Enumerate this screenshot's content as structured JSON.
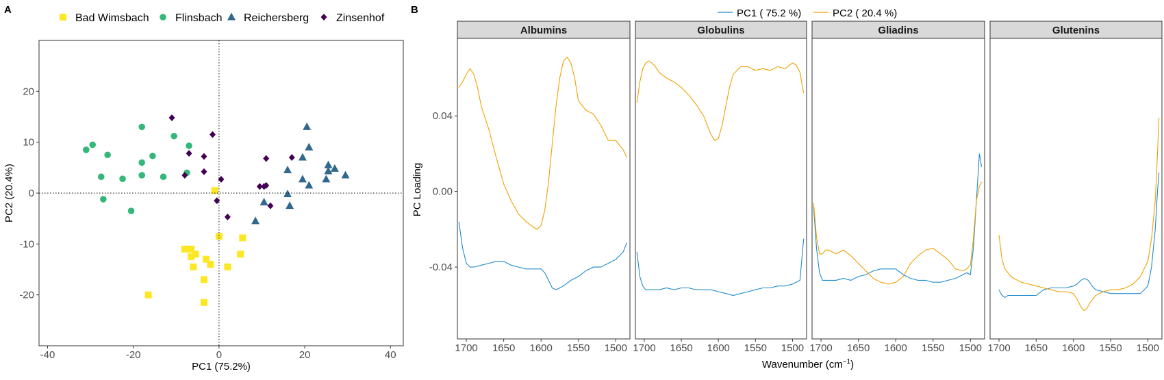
{
  "colors": {
    "bad_wimsbach": "#FDE725",
    "flinsbach": "#35B779",
    "reichersberg": "#31688E",
    "zinsenhof": "#440154",
    "pc1": "#1F8ACB",
    "pc2": "#F0A000",
    "strip_bg": "#D9D9D9"
  },
  "panel_a": {
    "letter": "A",
    "legend": [
      {
        "label": "Bad Wimsbach",
        "shape": "square",
        "color": "#FDE725"
      },
      {
        "label": "Flinsbach",
        "shape": "circle",
        "color": "#35B779"
      },
      {
        "label": "Reichersberg",
        "shape": "triangle",
        "color": "#31688E"
      },
      {
        "label": "Zinsenhof",
        "shape": "diamond",
        "color": "#440154"
      }
    ]
  },
  "panel_b": {
    "letter": "B",
    "legend": [
      {
        "label": "PC1 ( 75.2 %)",
        "color": "#1F8ACB"
      },
      {
        "label": "PC2 ( 20.4 %)",
        "color": "#F0A000"
      }
    ]
  },
  "chart_data": [
    {
      "type": "scatter",
      "xlabel": "PC1 (75.2%)",
      "ylabel": "PC2 (20.4%)",
      "xlim": [
        -42,
        43
      ],
      "ylim": [
        -30,
        30
      ],
      "xticks": [
        -40,
        -20,
        0,
        20,
        40
      ],
      "yticks": [
        -20,
        -10,
        0,
        10,
        20
      ],
      "reference_lines": {
        "x": 0,
        "y": 0,
        "style": "dotted"
      },
      "grid": false,
      "legend_position": "top",
      "series": [
        {
          "name": "Bad Wimsbach",
          "marker": "square",
          "points": [
            [
              -16.5,
              -20
            ],
            [
              -8,
              -11
            ],
            [
              -6.5,
              -11
            ],
            [
              -6.5,
              -12.5
            ],
            [
              -5.5,
              -12
            ],
            [
              -6,
              -14.5
            ],
            [
              -3,
              -13
            ],
            [
              -2,
              -14
            ],
            [
              -3.5,
              -17
            ],
            [
              -3.5,
              -21.5
            ],
            [
              -1,
              0.5
            ],
            [
              0,
              -8.5
            ],
            [
              2,
              -14.5
            ],
            [
              5,
              -12
            ],
            [
              5.5,
              -8.8
            ]
          ]
        },
        {
          "name": "Flinsbach",
          "marker": "circle",
          "points": [
            [
              -31,
              8.5
            ],
            [
              -29.5,
              9.5
            ],
            [
              -27.5,
              3.2
            ],
            [
              -26,
              7.5
            ],
            [
              -27,
              -1.2
            ],
            [
              -22.5,
              2.8
            ],
            [
              -20.5,
              -3.5
            ],
            [
              -18,
              6
            ],
            [
              -18,
              13
            ],
            [
              -18,
              3.5
            ],
            [
              -15.5,
              7.3
            ],
            [
              -13,
              3.2
            ],
            [
              -10.5,
              11.2
            ],
            [
              -7,
              9.3
            ],
            [
              -7.5,
              4
            ]
          ]
        },
        {
          "name": "Reichersberg",
          "marker": "triangle",
          "points": [
            [
              8.5,
              -5.5
            ],
            [
              10.5,
              -1.8
            ],
            [
              16,
              -0.2
            ],
            [
              16.5,
              -2.5
            ],
            [
              16,
              4.5
            ],
            [
              19.5,
              7
            ],
            [
              19.5,
              2.7
            ],
            [
              20.5,
              13
            ],
            [
              21,
              9
            ],
            [
              21,
              1.5
            ],
            [
              25,
              2.7
            ],
            [
              25.5,
              5.5
            ],
            [
              25.5,
              4.3
            ],
            [
              27,
              4.8
            ],
            [
              29.5,
              3.5
            ]
          ]
        },
        {
          "name": "Zinsenhof",
          "marker": "diamond",
          "points": [
            [
              -11,
              14.8
            ],
            [
              -8,
              3.5
            ],
            [
              -7,
              7.8
            ],
            [
              -3.5,
              7.2
            ],
            [
              -3.5,
              4.2
            ],
            [
              -1.5,
              11.5
            ],
            [
              -0.5,
              -1.5
            ],
            [
              0.5,
              2.7
            ],
            [
              2,
              -4.7
            ],
            [
              9.5,
              1.3
            ],
            [
              10.5,
              1.3
            ],
            [
              11,
              1.5
            ],
            [
              11,
              6.8
            ],
            [
              12,
              -2.5
            ],
            [
              17,
              7
            ]
          ]
        }
      ]
    },
    {
      "type": "line",
      "title": "",
      "xlabel": "Wavenumber (cm⁻¹)",
      "ylabel": "PC Loading",
      "x_direction": "reversed",
      "xlim": [
        1712,
        1481
      ],
      "ylim": [
        -0.078,
        0.081
      ],
      "xticks": [
        1700,
        1650,
        1600,
        1550,
        1500
      ],
      "yticks": [
        -0.04,
        0.0,
        0.04
      ],
      "ytick_labels": [
        "-0.04",
        "0.00",
        "0.04"
      ],
      "legend_position": "top",
      "facets": [
        {
          "name": "Albumins",
          "series": [
            {
              "name": "PC1 ( 75.2 %)",
              "x": [
                1710,
                1705,
                1700,
                1695,
                1690,
                1680,
                1670,
                1660,
                1650,
                1640,
                1630,
                1620,
                1610,
                1600,
                1595,
                1590,
                1585,
                1580,
                1570,
                1560,
                1550,
                1540,
                1530,
                1520,
                1510,
                1500,
                1490,
                1485
              ],
              "y": [
                -0.016,
                -0.03,
                -0.038,
                -0.04,
                -0.04,
                -0.039,
                -0.038,
                -0.037,
                -0.037,
                -0.039,
                -0.04,
                -0.041,
                -0.041,
                -0.041,
                -0.043,
                -0.047,
                -0.051,
                -0.052,
                -0.05,
                -0.047,
                -0.045,
                -0.042,
                -0.04,
                -0.04,
                -0.038,
                -0.036,
                -0.032,
                -0.027
              ]
            },
            {
              "name": "PC2 ( 20.4 %)",
              "x": [
                1710,
                1705,
                1700,
                1695,
                1690,
                1685,
                1680,
                1670,
                1660,
                1650,
                1640,
                1630,
                1620,
                1610,
                1605,
                1600,
                1595,
                1590,
                1585,
                1580,
                1575,
                1570,
                1565,
                1560,
                1555,
                1550,
                1540,
                1530,
                1520,
                1510,
                1500,
                1490,
                1485
              ],
              "y": [
                0.055,
                0.058,
                0.062,
                0.065,
                0.062,
                0.055,
                0.045,
                0.033,
                0.018,
                0.004,
                -0.005,
                -0.012,
                -0.016,
                -0.019,
                -0.02,
                -0.018,
                -0.01,
                0.005,
                0.025,
                0.045,
                0.06,
                0.069,
                0.071,
                0.068,
                0.06,
                0.048,
                0.043,
                0.041,
                0.035,
                0.027,
                0.027,
                0.022,
                0.018
              ]
            }
          ]
        },
        {
          "name": "Globulins",
          "series": [
            {
              "name": "PC1 ( 75.2 %)",
              "x": [
                1710,
                1706,
                1702,
                1698,
                1690,
                1680,
                1670,
                1660,
                1650,
                1640,
                1630,
                1620,
                1610,
                1600,
                1590,
                1580,
                1570,
                1560,
                1550,
                1540,
                1530,
                1520,
                1510,
                1500,
                1490,
                1485
              ],
              "y": [
                -0.032,
                -0.045,
                -0.05,
                -0.052,
                -0.052,
                -0.052,
                -0.051,
                -0.052,
                -0.051,
                -0.051,
                -0.052,
                -0.052,
                -0.052,
                -0.053,
                -0.054,
                -0.055,
                -0.054,
                -0.053,
                -0.052,
                -0.051,
                -0.051,
                -0.05,
                -0.05,
                -0.049,
                -0.047,
                -0.025
              ]
            },
            {
              "name": "PC2 ( 20.4 %)",
              "x": [
                1710,
                1706,
                1702,
                1698,
                1694,
                1690,
                1685,
                1680,
                1670,
                1660,
                1650,
                1640,
                1630,
                1620,
                1615,
                1610,
                1605,
                1600,
                1595,
                1590,
                1585,
                1580,
                1570,
                1560,
                1550,
                1540,
                1530,
                1520,
                1510,
                1500,
                1495,
                1490,
                1485
              ],
              "y": [
                0.047,
                0.058,
                0.065,
                0.068,
                0.069,
                0.068,
                0.066,
                0.063,
                0.06,
                0.058,
                0.055,
                0.051,
                0.046,
                0.04,
                0.035,
                0.03,
                0.027,
                0.028,
                0.035,
                0.045,
                0.055,
                0.062,
                0.066,
                0.066,
                0.064,
                0.065,
                0.064,
                0.066,
                0.065,
                0.068,
                0.067,
                0.063,
                0.052
              ]
            }
          ]
        },
        {
          "name": "Gliadins",
          "series": [
            {
              "name": "PC1 ( 75.2 %)",
              "x": [
                1710,
                1706,
                1702,
                1698,
                1694,
                1690,
                1680,
                1670,
                1660,
                1650,
                1640,
                1630,
                1620,
                1610,
                1600,
                1590,
                1580,
                1570,
                1560,
                1550,
                1540,
                1530,
                1520,
                1510,
                1505,
                1500,
                1496,
                1492,
                1488,
                1485
              ],
              "y": [
                -0.008,
                -0.03,
                -0.043,
                -0.047,
                -0.047,
                -0.047,
                -0.047,
                -0.046,
                -0.047,
                -0.045,
                -0.044,
                -0.042,
                -0.041,
                -0.041,
                -0.041,
                -0.044,
                -0.046,
                -0.047,
                -0.047,
                -0.048,
                -0.048,
                -0.047,
                -0.046,
                -0.044,
                -0.043,
                -0.044,
                -0.03,
                -0.005,
                0.02,
                0.013
              ]
            },
            {
              "name": "PC2 ( 20.4 %)",
              "x": [
                1710,
                1706,
                1702,
                1698,
                1694,
                1690,
                1685,
                1680,
                1670,
                1660,
                1650,
                1640,
                1630,
                1620,
                1610,
                1600,
                1590,
                1580,
                1570,
                1560,
                1550,
                1540,
                1530,
                1520,
                1510,
                1505,
                1500,
                1496,
                1492,
                1488,
                1485
              ],
              "y": [
                -0.006,
                -0.024,
                -0.033,
                -0.033,
                -0.031,
                -0.031,
                -0.032,
                -0.033,
                -0.031,
                -0.034,
                -0.038,
                -0.042,
                -0.046,
                -0.048,
                -0.049,
                -0.048,
                -0.045,
                -0.038,
                -0.034,
                -0.031,
                -0.03,
                -0.033,
                -0.036,
                -0.041,
                -0.042,
                -0.041,
                -0.039,
                -0.025,
                -0.005,
                0.003,
                0.005
              ]
            }
          ]
        },
        {
          "name": "Glutenins",
          "series": [
            {
              "name": "PC1 ( 75.2 %)",
              "x": [
                1700,
                1696,
                1692,
                1688,
                1680,
                1670,
                1660,
                1650,
                1640,
                1630,
                1620,
                1610,
                1600,
                1595,
                1590,
                1585,
                1580,
                1575,
                1570,
                1560,
                1550,
                1540,
                1530,
                1520,
                1510,
                1500,
                1495,
                1490,
                1487,
                1485
              ],
              "y": [
                -0.052,
                -0.055,
                -0.056,
                -0.055,
                -0.055,
                -0.055,
                -0.055,
                -0.055,
                -0.052,
                -0.051,
                -0.051,
                -0.051,
                -0.05,
                -0.049,
                -0.047,
                -0.046,
                -0.047,
                -0.05,
                -0.052,
                -0.053,
                -0.054,
                -0.054,
                -0.054,
                -0.054,
                -0.054,
                -0.05,
                -0.04,
                -0.02,
                0.0,
                0.01
              ]
            },
            {
              "name": "PC2 ( 20.4 %)",
              "x": [
                1700,
                1696,
                1692,
                1688,
                1684,
                1680,
                1670,
                1660,
                1650,
                1640,
                1630,
                1620,
                1610,
                1600,
                1595,
                1590,
                1586,
                1582,
                1578,
                1570,
                1560,
                1550,
                1540,
                1530,
                1520,
                1510,
                1505,
                1500,
                1495,
                1490,
                1487,
                1485
              ],
              "y": [
                -0.023,
                -0.036,
                -0.041,
                -0.043,
                -0.045,
                -0.046,
                -0.048,
                -0.049,
                -0.05,
                -0.051,
                -0.052,
                -0.053,
                -0.053,
                -0.054,
                -0.057,
                -0.061,
                -0.063,
                -0.062,
                -0.059,
                -0.055,
                -0.053,
                -0.052,
                -0.052,
                -0.051,
                -0.049,
                -0.045,
                -0.041,
                -0.037,
                -0.025,
                -0.005,
                0.02,
                0.039
              ]
            }
          ]
        }
      ]
    }
  ]
}
